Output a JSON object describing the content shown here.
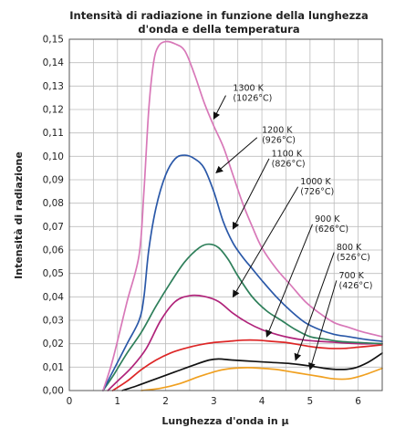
{
  "chart_data": {
    "type": "line",
    "title_lines": [
      "Intensità di radiazione in funzione della lunghezza",
      "d'onda e della temperatura"
    ],
    "xlabel": "Lunghezza d'onda in μ",
    "ylabel": "Intensità di radiazione",
    "xlim": [
      0,
      6.5
    ],
    "ylim": [
      0,
      0.15
    ],
    "x_ticks": [
      0,
      1,
      2,
      3,
      4,
      5,
      6
    ],
    "x_tick_labels": [
      "0",
      "1",
      "2",
      "3",
      "4",
      "5",
      "6"
    ],
    "y_ticks": [
      0,
      0.01,
      0.02,
      0.03,
      0.04,
      0.05,
      0.06,
      0.07,
      0.08,
      0.09,
      0.1,
      0.11,
      0.12,
      0.13,
      0.14,
      0.15
    ],
    "y_tick_labels": [
      "0,00",
      "0,01",
      "0,02",
      "0,03",
      "0,04",
      "0,05",
      "0,06",
      "0,07",
      "0,08",
      "0,09",
      "0,10",
      "0,11",
      "0,12",
      "0,13",
      "0,14",
      "0,15"
    ],
    "x_minor_grid_step": 0.5,
    "grid": true,
    "series": [
      {
        "key": "1300k",
        "color": "#d878b8",
        "points": [
          [
            0.7,
            0
          ],
          [
            0.9,
            0.013
          ],
          [
            1.2,
            0.038
          ],
          [
            1.45,
            0.058
          ],
          [
            1.55,
            0.085
          ],
          [
            1.65,
            0.12
          ],
          [
            1.75,
            0.14
          ],
          [
            1.85,
            0.147
          ],
          [
            2.0,
            0.149
          ],
          [
            2.2,
            0.148
          ],
          [
            2.4,
            0.145
          ],
          [
            2.6,
            0.135
          ],
          [
            2.8,
            0.123
          ],
          [
            3.0,
            0.113
          ],
          [
            3.2,
            0.104
          ],
          [
            3.4,
            0.092
          ],
          [
            3.6,
            0.08
          ],
          [
            3.8,
            0.07
          ],
          [
            4.0,
            0.061
          ],
          [
            4.3,
            0.052
          ],
          [
            4.6,
            0.045
          ],
          [
            4.9,
            0.038
          ],
          [
            5.2,
            0.033
          ],
          [
            5.5,
            0.029
          ],
          [
            5.8,
            0.027
          ],
          [
            6.1,
            0.025
          ],
          [
            6.5,
            0.023
          ]
        ]
      },
      {
        "key": "1200k",
        "color": "#2a58a8",
        "points": [
          [
            0.7,
            0
          ],
          [
            0.9,
            0.008
          ],
          [
            1.2,
            0.02
          ],
          [
            1.45,
            0.03
          ],
          [
            1.55,
            0.04
          ],
          [
            1.65,
            0.06
          ],
          [
            1.8,
            0.078
          ],
          [
            2.0,
            0.092
          ],
          [
            2.2,
            0.099
          ],
          [
            2.4,
            0.1005
          ],
          [
            2.6,
            0.099
          ],
          [
            2.8,
            0.095
          ],
          [
            3.0,
            0.085
          ],
          [
            3.2,
            0.072
          ],
          [
            3.4,
            0.063
          ],
          [
            3.6,
            0.057
          ],
          [
            3.8,
            0.052
          ],
          [
            4.0,
            0.047
          ],
          [
            4.3,
            0.04
          ],
          [
            4.6,
            0.034
          ],
          [
            4.9,
            0.029
          ],
          [
            5.2,
            0.026
          ],
          [
            5.5,
            0.024
          ],
          [
            5.8,
            0.023
          ],
          [
            6.1,
            0.022
          ],
          [
            6.5,
            0.021
          ]
        ]
      },
      {
        "key": "1100k",
        "color": "#2e7f5a",
        "points": [
          [
            0.7,
            0
          ],
          [
            0.9,
            0.006
          ],
          [
            1.2,
            0.016
          ],
          [
            1.5,
            0.025
          ],
          [
            1.8,
            0.036
          ],
          [
            2.1,
            0.046
          ],
          [
            2.4,
            0.055
          ],
          [
            2.7,
            0.061
          ],
          [
            2.9,
            0.0625
          ],
          [
            3.1,
            0.061
          ],
          [
            3.3,
            0.056
          ],
          [
            3.5,
            0.049
          ],
          [
            3.8,
            0.04
          ],
          [
            4.1,
            0.034
          ],
          [
            4.4,
            0.03
          ],
          [
            4.7,
            0.026
          ],
          [
            5.0,
            0.023
          ],
          [
            5.3,
            0.022
          ],
          [
            5.6,
            0.021
          ],
          [
            6.0,
            0.0205
          ],
          [
            6.5,
            0.02
          ]
        ]
      },
      {
        "key": "1000k",
        "color": "#b0237a",
        "points": [
          [
            0.8,
            0
          ],
          [
            1.0,
            0.004
          ],
          [
            1.3,
            0.01
          ],
          [
            1.6,
            0.018
          ],
          [
            1.9,
            0.03
          ],
          [
            2.2,
            0.038
          ],
          [
            2.5,
            0.0405
          ],
          [
            2.8,
            0.0402
          ],
          [
            3.1,
            0.038
          ],
          [
            3.4,
            0.033
          ],
          [
            3.7,
            0.029
          ],
          [
            4.0,
            0.026
          ],
          [
            4.3,
            0.024
          ],
          [
            4.6,
            0.0225
          ],
          [
            4.9,
            0.0215
          ],
          [
            5.2,
            0.021
          ],
          [
            5.6,
            0.0205
          ],
          [
            6.0,
            0.02
          ],
          [
            6.5,
            0.02
          ]
        ]
      },
      {
        "key": "900k",
        "color": "#dd2626",
        "points": [
          [
            0.9,
            0
          ],
          [
            1.2,
            0.004
          ],
          [
            1.5,
            0.009
          ],
          [
            1.8,
            0.013
          ],
          [
            2.1,
            0.016
          ],
          [
            2.4,
            0.018
          ],
          [
            2.7,
            0.0195
          ],
          [
            3.0,
            0.0205
          ],
          [
            3.3,
            0.021
          ],
          [
            3.6,
            0.0215
          ],
          [
            3.9,
            0.0215
          ],
          [
            4.2,
            0.021
          ],
          [
            4.5,
            0.0205
          ],
          [
            4.8,
            0.0195
          ],
          [
            5.1,
            0.0185
          ],
          [
            5.4,
            0.018
          ],
          [
            5.7,
            0.018
          ],
          [
            6.0,
            0.0185
          ],
          [
            6.5,
            0.0195
          ]
        ]
      },
      {
        "key": "800k",
        "color": "#111111",
        "points": [
          [
            1.1,
            0
          ],
          [
            1.4,
            0.002
          ],
          [
            1.8,
            0.005
          ],
          [
            2.2,
            0.008
          ],
          [
            2.6,
            0.011
          ],
          [
            2.9,
            0.013
          ],
          [
            3.1,
            0.0135
          ],
          [
            3.4,
            0.013
          ],
          [
            3.8,
            0.0125
          ],
          [
            4.2,
            0.012
          ],
          [
            4.6,
            0.0115
          ],
          [
            5.0,
            0.0105
          ],
          [
            5.3,
            0.0095
          ],
          [
            5.6,
            0.009
          ],
          [
            5.9,
            0.0095
          ],
          [
            6.2,
            0.012
          ],
          [
            6.5,
            0.016
          ]
        ]
      },
      {
        "key": "700k",
        "color": "#f0a020",
        "points": [
          [
            1.5,
            0
          ],
          [
            1.9,
            0.001
          ],
          [
            2.3,
            0.003
          ],
          [
            2.7,
            0.006
          ],
          [
            3.1,
            0.0085
          ],
          [
            3.4,
            0.0095
          ],
          [
            3.7,
            0.0098
          ],
          [
            4.0,
            0.0095
          ],
          [
            4.3,
            0.009
          ],
          [
            4.6,
            0.008
          ],
          [
            4.9,
            0.007
          ],
          [
            5.2,
            0.006
          ],
          [
            5.5,
            0.005
          ],
          [
            5.8,
            0.005
          ],
          [
            6.1,
            0.0065
          ],
          [
            6.5,
            0.0095
          ]
        ]
      }
    ],
    "annotations": [
      {
        "key": "1300k",
        "lines": [
          "1300 K",
          "(1026°C)"
        ],
        "label_xy": [
          3.4,
          0.128
        ],
        "arrow_from": [
          3.25,
          0.126
        ],
        "arrow_to": [
          3.0,
          0.116
        ]
      },
      {
        "key": "1200k",
        "lines": [
          "1200 K",
          "(926°C)"
        ],
        "label_xy": [
          4.0,
          0.11
        ],
        "arrow_from": [
          3.9,
          0.108
        ],
        "arrow_to": [
          3.05,
          0.093
        ]
      },
      {
        "key": "1100k",
        "lines": [
          "1100 K",
          "(826°C)"
        ],
        "label_xy": [
          4.2,
          0.1
        ],
        "arrow_from": [
          4.15,
          0.099
        ],
        "arrow_to": [
          3.4,
          0.069
        ]
      },
      {
        "key": "1000k",
        "lines": [
          "1000 K",
          "(726°C)"
        ],
        "label_xy": [
          4.8,
          0.088
        ],
        "arrow_from": [
          4.75,
          0.087
        ],
        "arrow_to": [
          3.4,
          0.04
        ]
      },
      {
        "key": "900k",
        "lines": [
          "900 K",
          "(626°C)"
        ],
        "label_xy": [
          5.1,
          0.072
        ],
        "arrow_from": [
          5.05,
          0.071
        ],
        "arrow_to": [
          4.1,
          0.023
        ]
      },
      {
        "key": "800k",
        "lines": [
          "800 K",
          "(526°C)"
        ],
        "label_xy": [
          5.55,
          0.06
        ],
        "arrow_from": [
          5.5,
          0.059
        ],
        "arrow_to": [
          4.7,
          0.013
        ]
      },
      {
        "key": "700k",
        "lines": [
          "700 K",
          "(426°C)"
        ],
        "label_xy": [
          5.6,
          0.048
        ],
        "arrow_from": [
          5.55,
          0.047
        ],
        "arrow_to": [
          5.0,
          0.009
        ]
      }
    ]
  }
}
